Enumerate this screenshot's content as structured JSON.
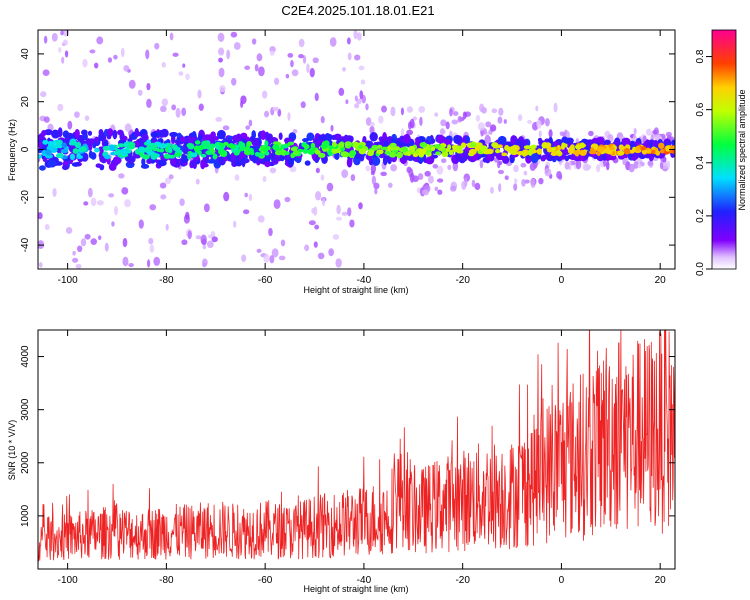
{
  "title": "C2E4.2025.101.18.01.E21",
  "colors": {
    "snr_line": "#ee2222",
    "frame": "#000000",
    "spectrogram_background": "#ffffff"
  },
  "chart_data": [
    {
      "type": "heatmap",
      "xlabel": "Height of straight line (km)",
      "ylabel": "Frequency (Hz)",
      "xlim": [
        -106,
        23
      ],
      "ylim": [
        -50,
        50
      ],
      "x_ticks": [
        -100,
        -80,
        -60,
        -40,
        -20,
        0,
        20
      ],
      "y_ticks": [
        -40,
        -20,
        0,
        20,
        40
      ],
      "grid": false,
      "description_values": {
        "band_center_hz": 0,
        "band_halfwidth_hz_start": 8,
        "band_halfwidth_hz_end": 3
      },
      "colorbar": {
        "label": "Normalized spectral amplitude",
        "range": [
          0.0,
          0.9
        ],
        "ticks": [
          0.0,
          0.2,
          0.4,
          0.6,
          0.8
        ],
        "colormap": "rainbow (white-violet-blue-cyan-green-yellow-red-magenta)"
      }
    },
    {
      "type": "line",
      "xlabel": "Height of straight line (km)",
      "ylabel": "SNR (10 * V/V)",
      "xlim": [
        -106,
        23
      ],
      "ylim": [
        0,
        4500
      ],
      "x_ticks": [
        -100,
        -80,
        -60,
        -40,
        -20,
        0,
        20
      ],
      "y_ticks": [
        1000,
        2000,
        3000,
        4000
      ],
      "grid": false,
      "series": [
        {
          "x": [
            -106,
            -100,
            -95,
            -90,
            -85,
            -80,
            -75,
            -70,
            -65,
            -60,
            -55,
            -50,
            -45,
            -40,
            -35,
            -32,
            -30,
            -25,
            -20,
            -15,
            -10,
            -5,
            0,
            5,
            10,
            15,
            20,
            23
          ],
          "values": [
            550,
            600,
            650,
            700,
            650,
            700,
            700,
            750,
            700,
            750,
            700,
            800,
            850,
            900,
            1000,
            1600,
            1050,
            1200,
            1300,
            1400,
            1400,
            1700,
            2000,
            2150,
            2600,
            2500,
            2600,
            2700
          ]
        }
      ]
    }
  ]
}
